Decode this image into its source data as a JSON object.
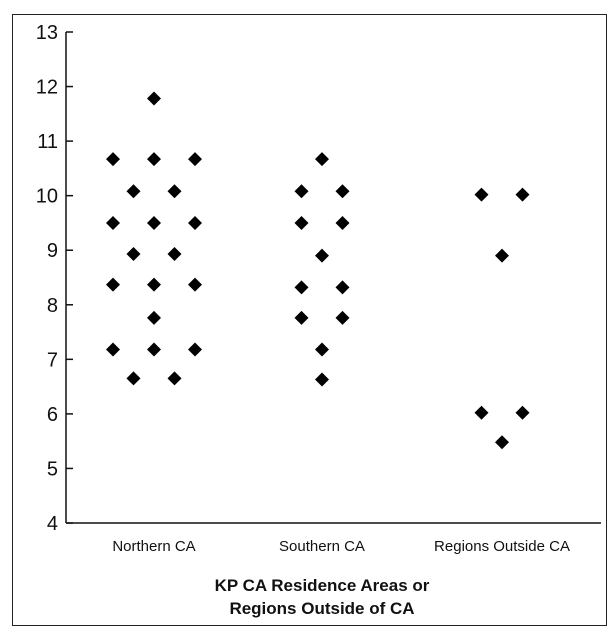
{
  "chart_data": {
    "type": "scatter",
    "title": "",
    "xlabel": [
      "KP CA Residence Areas or",
      "Regions Outside of CA"
    ],
    "ylabel": "",
    "categories": [
      "Northern CA",
      "Southern CA",
      "Regions Outside CA"
    ],
    "ylim": [
      4,
      13
    ],
    "yticks": [
      "4",
      "5",
      "6",
      "7",
      "8",
      "9",
      "10",
      "11",
      "12",
      "13"
    ],
    "grid": false,
    "marker": "diamond",
    "marker_color": "#000000",
    "points": [
      {
        "category": "Northern CA",
        "offset": 0,
        "y": 11.78
      },
      {
        "category": "Northern CA",
        "offset": -2,
        "y": 10.67
      },
      {
        "category": "Northern CA",
        "offset": 0,
        "y": 10.67
      },
      {
        "category": "Northern CA",
        "offset": 2,
        "y": 10.67
      },
      {
        "category": "Northern CA",
        "offset": -1,
        "y": 10.08
      },
      {
        "category": "Northern CA",
        "offset": 1,
        "y": 10.08
      },
      {
        "category": "Northern CA",
        "offset": -2,
        "y": 9.5
      },
      {
        "category": "Northern CA",
        "offset": 0,
        "y": 9.5
      },
      {
        "category": "Northern CA",
        "offset": 2,
        "y": 9.5
      },
      {
        "category": "Northern CA",
        "offset": -1,
        "y": 8.93
      },
      {
        "category": "Northern CA",
        "offset": 1,
        "y": 8.93
      },
      {
        "category": "Northern CA",
        "offset": -2,
        "y": 8.37
      },
      {
        "category": "Northern CA",
        "offset": 0,
        "y": 8.37
      },
      {
        "category": "Northern CA",
        "offset": 2,
        "y": 8.37
      },
      {
        "category": "Northern CA",
        "offset": 0,
        "y": 7.76
      },
      {
        "category": "Northern CA",
        "offset": -2,
        "y": 7.18
      },
      {
        "category": "Northern CA",
        "offset": 0,
        "y": 7.18
      },
      {
        "category": "Northern CA",
        "offset": 2,
        "y": 7.18
      },
      {
        "category": "Northern CA",
        "offset": -1,
        "y": 6.65
      },
      {
        "category": "Northern CA",
        "offset": 1,
        "y": 6.65
      },
      {
        "category": "Southern CA",
        "offset": 0,
        "y": 10.67
      },
      {
        "category": "Southern CA",
        "offset": -1,
        "y": 10.08
      },
      {
        "category": "Southern CA",
        "offset": 1,
        "y": 10.08
      },
      {
        "category": "Southern CA",
        "offset": -1,
        "y": 9.5
      },
      {
        "category": "Southern CA",
        "offset": 1,
        "y": 9.5
      },
      {
        "category": "Southern CA",
        "offset": 0,
        "y": 8.9
      },
      {
        "category": "Southern CA",
        "offset": -1,
        "y": 8.32
      },
      {
        "category": "Southern CA",
        "offset": 1,
        "y": 8.32
      },
      {
        "category": "Southern CA",
        "offset": -1,
        "y": 7.76
      },
      {
        "category": "Southern CA",
        "offset": 1,
        "y": 7.76
      },
      {
        "category": "Southern CA",
        "offset": 0,
        "y": 7.18
      },
      {
        "category": "Southern CA",
        "offset": 0,
        "y": 6.63
      },
      {
        "category": "Regions Outside CA",
        "offset": -1,
        "y": 10.02
      },
      {
        "category": "Regions Outside CA",
        "offset": 1,
        "y": 10.02
      },
      {
        "category": "Regions Outside CA",
        "offset": 0,
        "y": 8.9
      },
      {
        "category": "Regions Outside CA",
        "offset": -1,
        "y": 6.02
      },
      {
        "category": "Regions Outside CA",
        "offset": 1,
        "y": 6.02
      },
      {
        "category": "Regions Outside CA",
        "offset": 0,
        "y": 5.48
      }
    ]
  }
}
